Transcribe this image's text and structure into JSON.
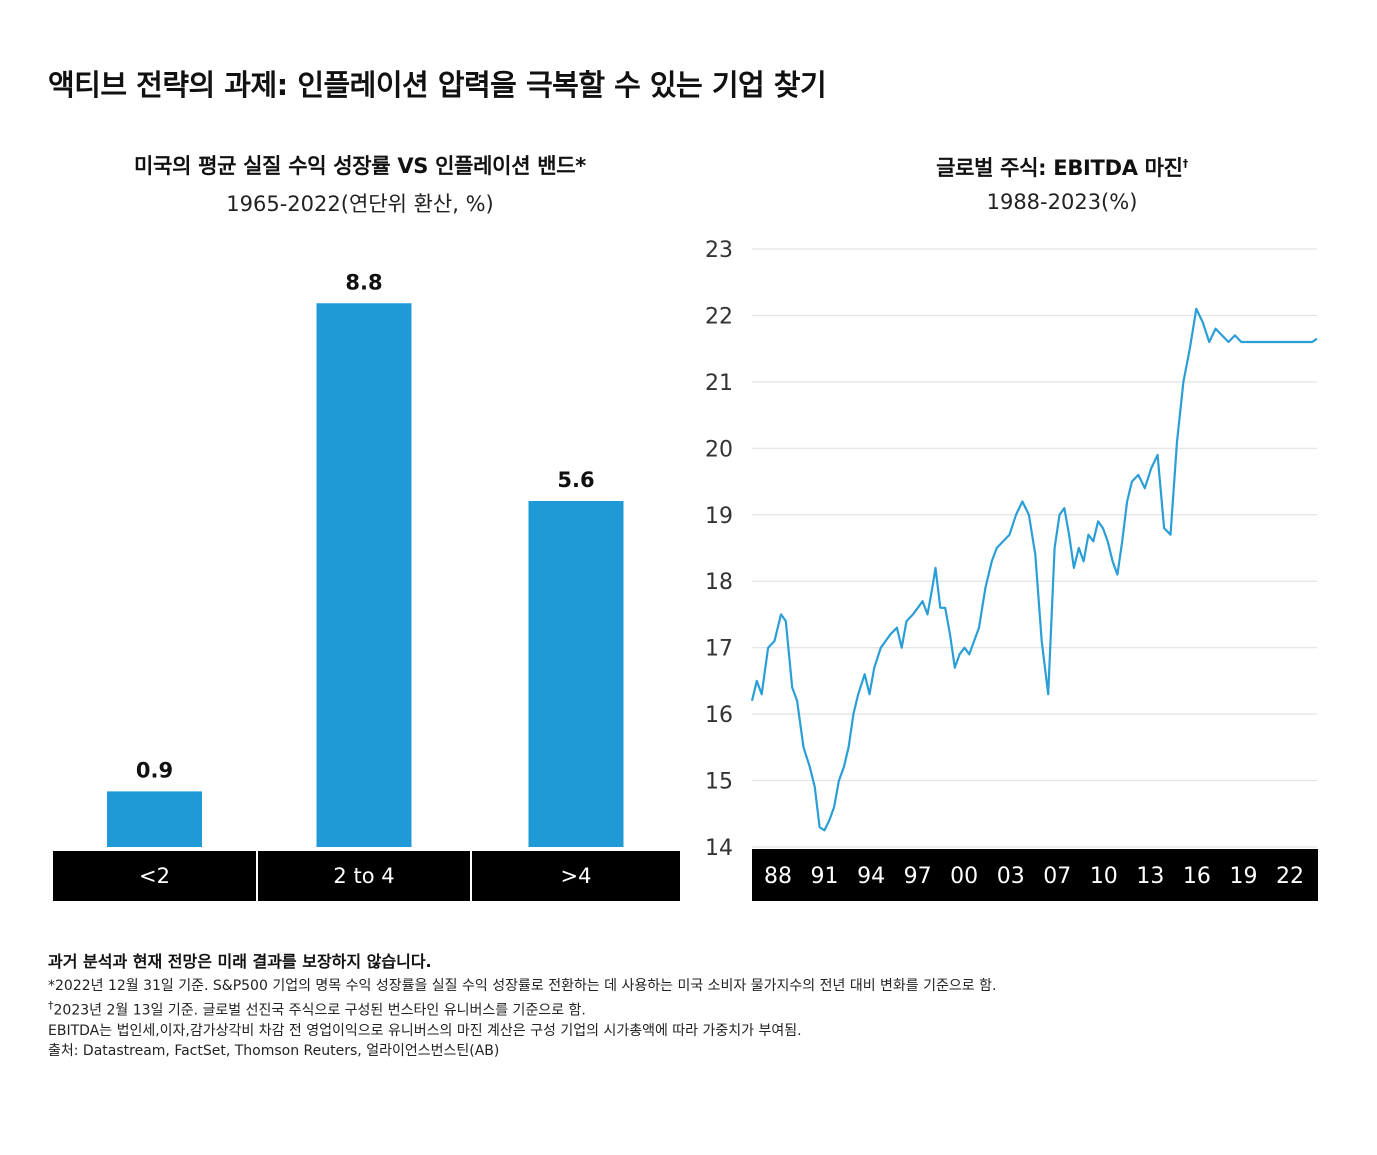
{
  "main_title": "액티브 전략의 과제: 인플레이션 압력을 극복할 수 있는 기업 찾기",
  "colors": {
    "bar": "#1f9ad6",
    "line": "#2a9ed6",
    "axis_band": "#000000",
    "grid": "#e3e3e3"
  },
  "chart_data": [
    {
      "type": "bar",
      "title": "미국의 평균 실질 수익 성장률 VS 인플레이션 밴드*",
      "subtitle": "1965-2022(연단위 환산, %)",
      "categories": [
        "<2",
        "2 to 4",
        ">4"
      ],
      "values": [
        0.9,
        8.8,
        5.6
      ],
      "value_labels": [
        "0.9",
        "8.8",
        "5.6"
      ],
      "ylim": [
        0,
        9.5
      ]
    },
    {
      "type": "line",
      "title": "글로벌 주식: EBITDA 마진",
      "title_mark": "†",
      "subtitle": "1988-2023(%)",
      "x_tick_labels": [
        "88",
        "91",
        "94",
        "97",
        "00",
        "03",
        "07",
        "10",
        "13",
        "16",
        "19",
        "22"
      ],
      "y_tick_labels": [
        "23",
        "22",
        "21",
        "20",
        "19",
        "18",
        "17",
        "16",
        "15",
        "14"
      ],
      "ylim": [
        14,
        23
      ],
      "xlim": [
        1988,
        2023.1
      ],
      "grid": true,
      "series": [
        {
          "x": [
            1988.0,
            1988.3,
            1988.6,
            1989.0,
            1989.4,
            1989.8,
            1990.1,
            1990.5,
            1990.8,
            1991.2,
            1991.6,
            1991.9,
            1992.2,
            1992.5,
            1992.8,
            1993.1,
            1993.4,
            1993.7,
            1994.0,
            1994.3,
            1994.6,
            1995.0,
            1995.3,
            1995.6,
            1996.0,
            1996.3,
            1996.6,
            1997.0,
            1997.3,
            1997.6,
            1998.0,
            1998.3,
            1998.6,
            1998.9,
            1999.2,
            1999.4,
            1999.7,
            2000.0,
            2000.3,
            2000.6,
            2000.9,
            2001.2,
            2001.5,
            2001.8,
            2002.1,
            2002.5,
            2002.9,
            2003.2,
            2003.6,
            2004.0,
            2004.4,
            2004.8,
            2005.2,
            2005.6,
            2006.0,
            2006.4,
            2006.8,
            2007.1,
            2007.4,
            2007.7,
            2008.0,
            2008.3,
            2008.6,
            2008.9,
            2009.2,
            2009.5,
            2009.8,
            2010.1,
            2010.4,
            2010.7,
            2011.0,
            2011.3,
            2011.6,
            2012.0,
            2012.4,
            2012.8,
            2013.2,
            2013.6,
            2014.0,
            2014.4,
            2014.8,
            2015.2,
            2015.6,
            2016.0,
            2016.4,
            2016.8,
            2017.2,
            2017.6,
            2018.0,
            2018.4,
            2018.8,
            2019.2,
            2019.5,
            2019.8,
            2020.1,
            2020.4,
            2020.7,
            2021.0,
            2021.3,
            2021.6,
            2021.9,
            2022.2,
            2022.5,
            2022.8,
            2023.1
          ],
          "values": [
            16.2,
            16.5,
            16.3,
            17.0,
            17.1,
            17.5,
            17.4,
            16.4,
            16.2,
            15.5,
            15.2,
            14.9,
            14.3,
            14.25,
            14.4,
            14.6,
            15.0,
            15.2,
            15.5,
            16.0,
            16.3,
            16.6,
            16.3,
            16.7,
            17.0,
            17.1,
            17.2,
            17.3,
            17.0,
            17.4,
            17.5,
            17.6,
            17.7,
            17.5,
            17.9,
            18.2,
            17.6,
            17.6,
            17.2,
            16.7,
            16.9,
            17.0,
            16.9,
            17.1,
            17.3,
            17.9,
            18.3,
            18.5,
            18.6,
            18.7,
            19.0,
            19.2,
            19.0,
            18.4,
            17.1,
            16.3,
            18.5,
            19.0,
            19.1,
            18.7,
            18.2,
            18.5,
            18.3,
            18.7,
            18.6,
            18.9,
            18.8,
            18.6,
            18.3,
            18.1,
            18.6,
            19.2,
            19.5,
            19.6,
            19.4,
            19.7,
            19.9,
            18.8,
            18.7,
            20.1,
            21.0,
            21.5,
            22.1,
            21.9,
            21.6,
            21.8,
            21.7,
            21.6,
            21.7,
            21.6,
            21.6,
            21.6,
            21.6,
            21.6,
            21.6,
            21.6,
            21.6,
            21.6,
            21.6,
            21.6,
            21.6,
            21.6,
            21.6,
            21.6,
            21.65
          ]
        }
      ]
    }
  ],
  "footer": {
    "disclaimer": "과거 분석과 현재 전망은 미래 결과를 보장하지 않습니다.",
    "note1": "*2022년 12월 31일 기준. S&P500 기업의 명목 수익 성장률을 실질 수익 성장률로 전환하는 데 사용하는 미국 소비자 물가지수의 전년 대비 변화를 기준으로 함.",
    "note2_mark": "†",
    "note2": "2023년 2월 13일 기준. 글로벌 선진국 주식으로 구성된 번스타인 유니버스를 기준으로 함.",
    "note3": "EBITDA는 법인세,이자,감가상각비 차감 전 영업이익으로 유니버스의 마진 계산은 구성 기업의 시가총액에 따라 가중치가 부여됨.",
    "note4": "출처: Datastream, FactSet, Thomson Reuters, 얼라이언스번스틴(AB)"
  }
}
